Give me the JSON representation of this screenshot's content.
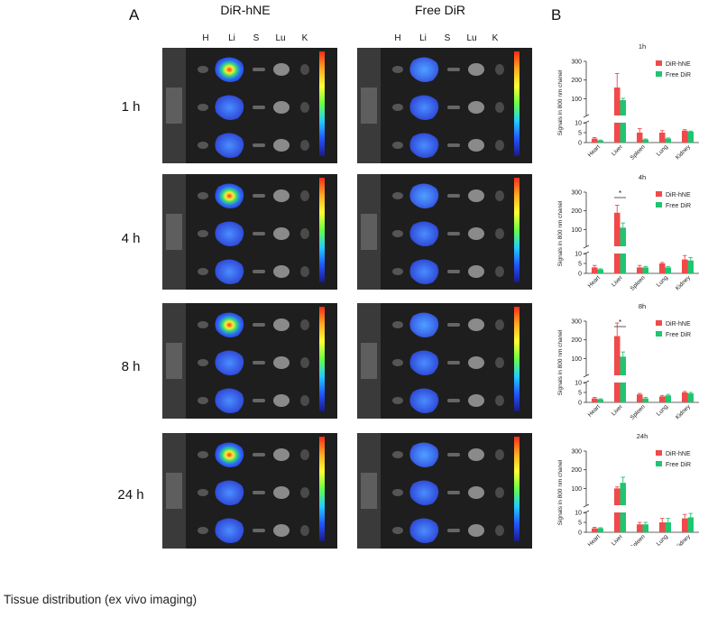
{
  "panel_labels": {
    "a": "A",
    "b": "B"
  },
  "column_titles": [
    "DiR-hNE",
    "Free DiR"
  ],
  "organ_headers": [
    "H",
    "Li",
    "S",
    "Lu",
    "K"
  ],
  "row_labels": [
    "1 h",
    "4 h",
    "8 h",
    "24 h"
  ],
  "colorbar_ticks": [
    "0.0903",
    "0.0802",
    "0.0700",
    "0.0600",
    "0.0500",
    "0.0400",
    "0.0300",
    "0.0200",
    "0.0100",
    "0.00700"
  ],
  "caption": "Tissue distribution (ex vivo imaging)",
  "colors": {
    "dir_hne": "#f04a4a",
    "free_dir": "#1fc56f",
    "panel_bg": "#1c1c1c"
  },
  "chart_data": [
    {
      "type": "bar",
      "title": "1h",
      "ylabel": "Signals in 800 nm chanel",
      "categories": [
        "Heart",
        "Liver",
        "Spleen",
        "Lung",
        "Kidney"
      ],
      "ylim": [
        0,
        300
      ],
      "yticks": [
        "0",
        "5",
        "10",
        "100",
        "200",
        "300"
      ],
      "series": [
        {
          "name": "DiR-hNE",
          "values": [
            2,
            160,
            5,
            5,
            6
          ],
          "errors": [
            0.5,
            75,
            2,
            1,
            0.5
          ]
        },
        {
          "name": "Free DiR",
          "values": [
            1,
            92,
            1.5,
            2,
            5.5
          ],
          "errors": [
            0.3,
            10,
            0.3,
            0.3,
            0.3
          ]
        }
      ],
      "annotations": []
    },
    {
      "type": "bar",
      "title": "4h",
      "ylabel": "Signals in 800 nm chanel",
      "categories": [
        "Heart",
        "Liver",
        "Spleen",
        "Lung",
        "Kidney"
      ],
      "ylim": [
        0,
        300
      ],
      "yticks": [
        "0",
        "5",
        "10",
        "100",
        "200",
        "300"
      ],
      "series": [
        {
          "name": "DiR-hNE",
          "values": [
            3,
            190,
            3,
            5,
            7
          ],
          "errors": [
            1,
            40,
            1,
            0.5,
            2
          ]
        },
        {
          "name": "Free DiR",
          "values": [
            2,
            110,
            3,
            3,
            6.5
          ],
          "errors": [
            0.3,
            25,
            0.5,
            0.5,
            1.5
          ]
        }
      ],
      "annotations": [
        "*"
      ]
    },
    {
      "type": "bar",
      "title": "8h",
      "ylabel": "Signals in 800 nm chanel",
      "categories": [
        "Heart",
        "Liver",
        "Spleen",
        "Lung",
        "Kidney"
      ],
      "ylim": [
        0,
        300
      ],
      "yticks": [
        "0",
        "5",
        "10",
        "100",
        "200",
        "300"
      ],
      "series": [
        {
          "name": "DiR-hNE",
          "values": [
            2,
            220,
            4,
            3,
            5
          ],
          "errors": [
            0.5,
            70,
            0.5,
            0.5,
            0.5
          ]
        },
        {
          "name": "Free DiR",
          "values": [
            1.5,
            110,
            2,
            3.5,
            4.5
          ],
          "errors": [
            0.3,
            25,
            0.5,
            0.5,
            0.5
          ]
        }
      ],
      "annotations": [
        "*"
      ]
    },
    {
      "type": "bar",
      "title": "24h",
      "ylabel": "Signals in 800 nm chanel",
      "categories": [
        "Heart",
        "Liver",
        "Spleen",
        "Lung",
        "Kidney"
      ],
      "ylim": [
        0,
        300
      ],
      "yticks": [
        "0",
        "5",
        "10",
        "100",
        "200",
        "300"
      ],
      "series": [
        {
          "name": "DiR-hNE",
          "values": [
            2,
            100,
            4,
            5,
            7
          ],
          "errors": [
            0.5,
            8,
            1,
            2,
            2
          ]
        },
        {
          "name": "Free DiR",
          "values": [
            2,
            130,
            4,
            5,
            7.5
          ],
          "errors": [
            0.3,
            30,
            1,
            2,
            2
          ]
        }
      ],
      "annotations": []
    }
  ]
}
